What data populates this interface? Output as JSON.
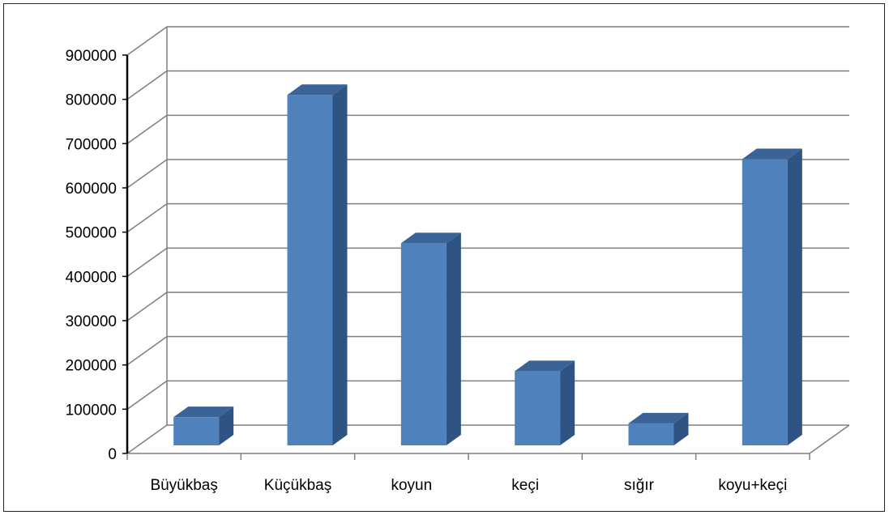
{
  "chart_data": {
    "type": "bar",
    "title": "",
    "xlabel": "",
    "ylabel": "",
    "categories": [
      "Büyükbaş",
      "Küçükbaş",
      "koyun",
      "keçi",
      "sığır",
      "koyu+keçi"
    ],
    "values": [
      82000,
      810000,
      475000,
      186000,
      68000,
      665000
    ],
    "ylim": [
      0,
      900000
    ],
    "yticks": [
      "0",
      "100000",
      "200000",
      "300000",
      "400000",
      "500000",
      "600000",
      "700000",
      "800000",
      "900000"
    ],
    "grid": true,
    "legend": "none",
    "style": "3d-column",
    "colors": {
      "bar_front": "#4f81bd",
      "bar_side": "#2f5383",
      "bar_top": "#3a6397",
      "grid": "#7f7f7f"
    }
  }
}
